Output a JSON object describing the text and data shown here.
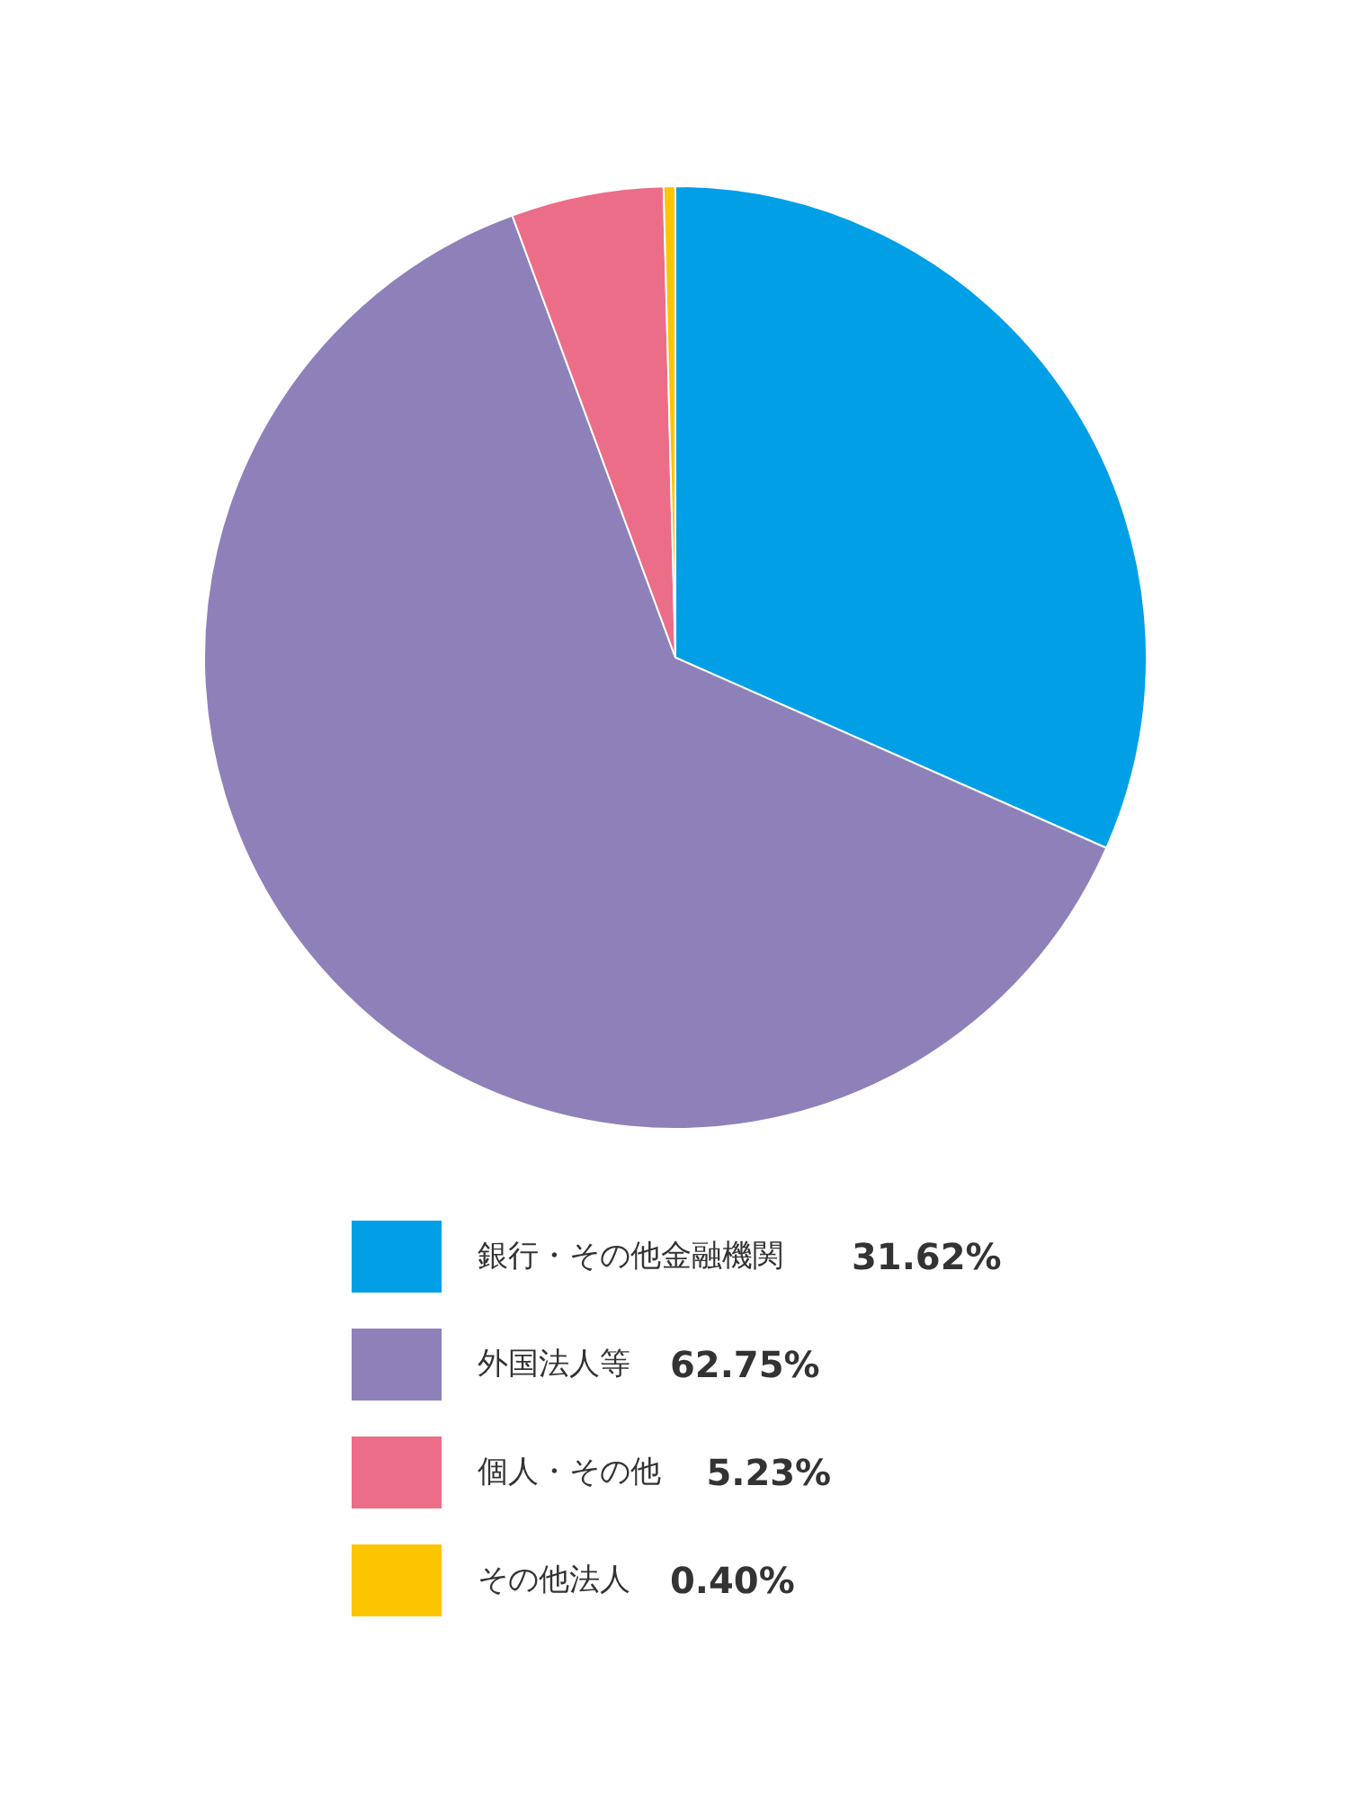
{
  "chart_data": {
    "type": "pie",
    "categories": [
      "銀行・その他金融機関",
      "外国法人等",
      "個人・その他",
      "その他法人"
    ],
    "values": [
      31.62,
      62.75,
      5.23,
      0.4
    ],
    "colors": [
      "#009fe6",
      "#8e81b9",
      "#ec6d87",
      "#fcc500"
    ],
    "value_labels": [
      "31.62%",
      "62.75%",
      "5.23%",
      "0.40%"
    ],
    "legend": "bottom"
  }
}
